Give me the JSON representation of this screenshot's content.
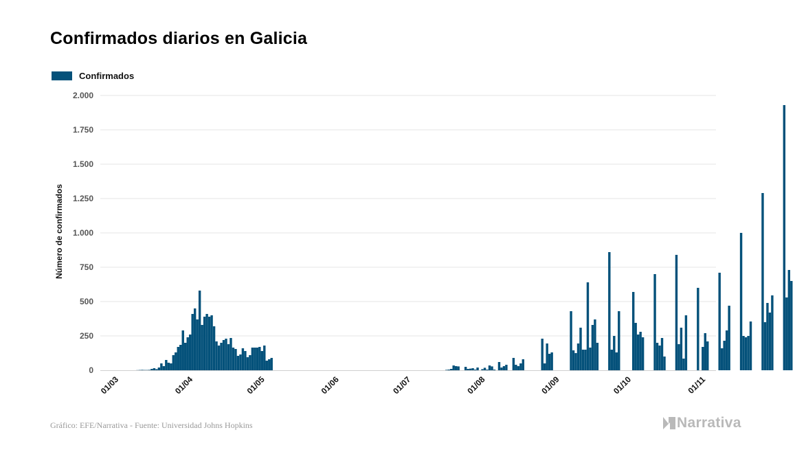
{
  "title": "Confirmados diarios en Galicia",
  "footer": {
    "source": "Gráfico: EFE/Narrativa - Fuente: Universidad Johns Hopkins",
    "logo": "Narrativa"
  },
  "colors": {
    "bar": "#04517a",
    "grid": "#e6e6e6",
    "logo": "#b9b9b9"
  },
  "chart_data": {
    "type": "bar",
    "ylabel": "Número de confirmados",
    "ylim": [
      0,
      2000
    ],
    "yticks": [
      {
        "value": 0,
        "label": "0"
      },
      {
        "value": 250,
        "label": "250"
      },
      {
        "value": 500,
        "label": "500"
      },
      {
        "value": 750,
        "label": "750"
      },
      {
        "value": 1000,
        "label": "1.000"
      },
      {
        "value": 1250,
        "label": "1.250"
      },
      {
        "value": 1500,
        "label": "1.500"
      },
      {
        "value": 1750,
        "label": "1.750"
      },
      {
        "value": 2000,
        "label": "2.000"
      }
    ],
    "xlim": [
      "2020-02-24",
      "2020-11-07"
    ],
    "xticks": [
      {
        "date": "2020-03-01",
        "label": "01/03"
      },
      {
        "date": "2020-04-01",
        "label": "01/04"
      },
      {
        "date": "2020-05-01",
        "label": "01/05"
      },
      {
        "date": "2020-06-01",
        "label": "01/06"
      },
      {
        "date": "2020-07-01",
        "label": "01/07"
      },
      {
        "date": "2020-08-01",
        "label": "01/08"
      },
      {
        "date": "2020-09-01",
        "label": "01/09"
      },
      {
        "date": "2020-10-01",
        "label": "01/10"
      },
      {
        "date": "2020-11-01",
        "label": "01/11"
      }
    ],
    "grid": true,
    "legend": {
      "position": "top-left"
    },
    "series": [
      {
        "name": "Confirmados",
        "start_date": "2020-03-03",
        "values": [
          0,
          0,
          0,
          0,
          0,
          0,
          0,
          1,
          2,
          3,
          2,
          2,
          3,
          10,
          15,
          8,
          20,
          50,
          30,
          75,
          55,
          50,
          110,
          130,
          170,
          185,
          290,
          200,
          240,
          260,
          410,
          450,
          370,
          580,
          330,
          390,
          410,
          390,
          400,
          320,
          210,
          180,
          200,
          220,
          230,
          190,
          235,
          165,
          155,
          105,
          115,
          160,
          140,
          95,
          110,
          165,
          165,
          165,
          170,
          140,
          180,
          70,
          80,
          90,
          0,
          0,
          0,
          0,
          0,
          0,
          0,
          0,
          0,
          0,
          0,
          0,
          0,
          0,
          0,
          0,
          0,
          0,
          0,
          0,
          0,
          0,
          0,
          0,
          0,
          0,
          0,
          0,
          0,
          0,
          0,
          0,
          0,
          0,
          0,
          0,
          0,
          0,
          0,
          0,
          0,
          0,
          0,
          0,
          0,
          0,
          0,
          0,
          0,
          0,
          0,
          0,
          0,
          0,
          0,
          0,
          0,
          0,
          0,
          0,
          0,
          0,
          0,
          0,
          0,
          0,
          0,
          0,
          0,
          0,
          0,
          0,
          3,
          5,
          10,
          35,
          30,
          28,
          0,
          0,
          25,
          10,
          12,
          15,
          5,
          20,
          0,
          8,
          18,
          5,
          35,
          28,
          5,
          0,
          60,
          20,
          30,
          40,
          0,
          0,
          90,
          40,
          30,
          50,
          80,
          0,
          0,
          0,
          0,
          0,
          0,
          0,
          230,
          50,
          195,
          120,
          130,
          0,
          0,
          0,
          0,
          0,
          0,
          0,
          430,
          145,
          125,
          195,
          310,
          150,
          150,
          640,
          165,
          330,
          370,
          200,
          0,
          0,
          0,
          0,
          860,
          150,
          250,
          130,
          430,
          0,
          0,
          0,
          0,
          0,
          570,
          345,
          260,
          280,
          240,
          0,
          0,
          0,
          0,
          700,
          200,
          180,
          235,
          100,
          0,
          0,
          0,
          0,
          840,
          190,
          310,
          85,
          400,
          0,
          0,
          0,
          0,
          600,
          0,
          170,
          270,
          210,
          0,
          0,
          0,
          0,
          710,
          160,
          215,
          290,
          470,
          0,
          0,
          0,
          0,
          1000,
          250,
          240,
          250,
          355,
          0,
          0,
          0,
          0,
          1290,
          350,
          490,
          420,
          545,
          0,
          0,
          0,
          0,
          1930,
          530,
          730,
          650
        ],
        "visible_ranges": [
          [
            0,
            75
          ],
          [
            136,
            246
          ]
        ]
      }
    ]
  }
}
